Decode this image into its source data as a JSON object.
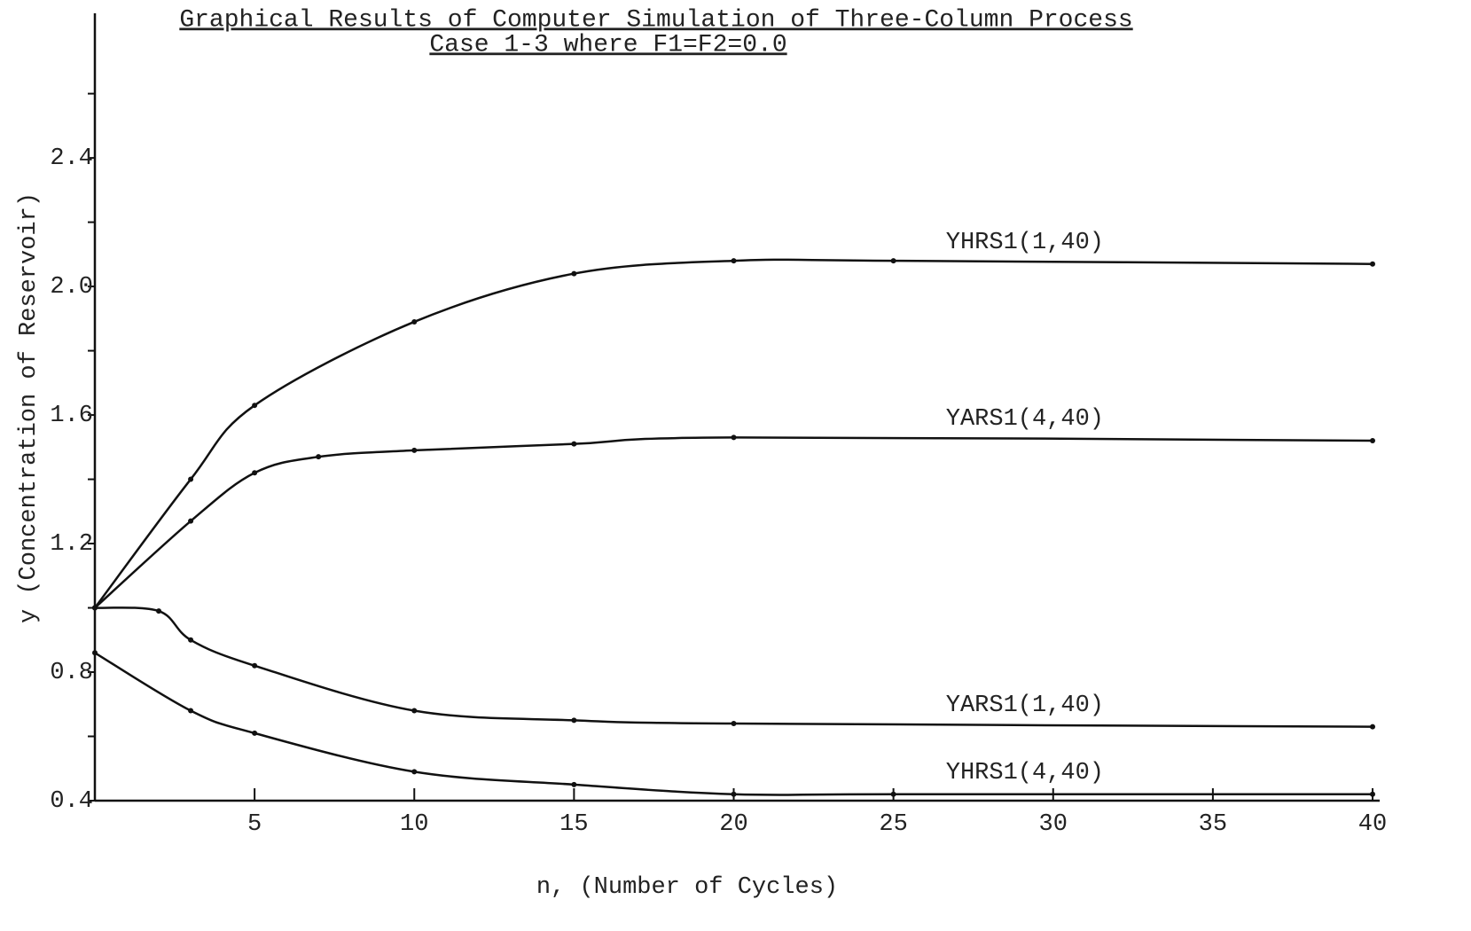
{
  "chart_data": {
    "type": "line",
    "title": "Graphical Results of Computer Simulation of Three-Column Process",
    "subtitle": "Case 1-3 where F1=F2=0.0",
    "x_label": "n, (Number of Cycles)",
    "y_label": "y (Concentration of Reservoir)",
    "xlim": [
      0,
      40
    ],
    "xticks": [
      5,
      10,
      15,
      20,
      25,
      30,
      35,
      40
    ],
    "ylim": [
      0.4,
      2.85
    ],
    "yticks": [
      {
        "value": 0.4,
        "label": "0.4"
      },
      {
        "value": 0.8,
        "label": "0.8"
      },
      {
        "value": 1.2,
        "label": "1.2"
      },
      {
        "value": 1.6,
        "label": "1.6"
      },
      {
        "value": 2.0,
        "label": "2.0"
      },
      {
        "value": 2.4,
        "label": "2.4"
      }
    ],
    "yticks_minor": [
      0.6,
      1.0,
      1.4,
      1.8,
      2.2,
      2.6
    ],
    "grid": false,
    "series": [
      {
        "name": "YHRS1(1,40)",
        "color": "#111111",
        "x": [
          0,
          3,
          5,
          10,
          15,
          20,
          25,
          40
        ],
        "values": [
          1.0,
          1.4,
          1.63,
          1.89,
          2.04,
          2.08,
          2.08,
          2.07
        ]
      },
      {
        "name": "YARS1(4,40)",
        "color": "#111111",
        "x": [
          0,
          3,
          5,
          7,
          10,
          15,
          20,
          40
        ],
        "values": [
          1.0,
          1.27,
          1.42,
          1.47,
          1.49,
          1.51,
          1.53,
          1.52
        ]
      },
      {
        "name": "YARS1(1,40)",
        "color": "#111111",
        "x": [
          0,
          2,
          3,
          5,
          10,
          15,
          20,
          40
        ],
        "values": [
          1.0,
          0.99,
          0.9,
          0.82,
          0.68,
          0.65,
          0.64,
          0.63
        ]
      },
      {
        "name": "YHRS1(4,40)",
        "color": "#111111",
        "x": [
          0,
          3,
          5,
          10,
          15,
          20,
          25,
          40
        ],
        "values": [
          0.86,
          0.68,
          0.61,
          0.49,
          0.45,
          0.42,
          0.42,
          0.42
        ]
      }
    ]
  }
}
